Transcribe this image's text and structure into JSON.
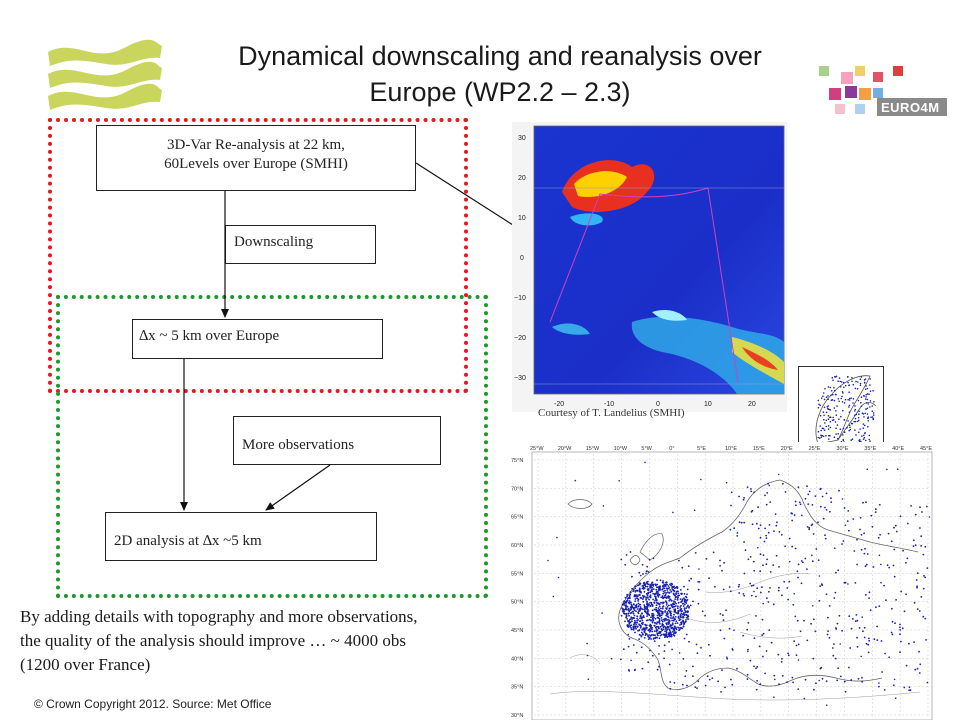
{
  "slide": {
    "title_line1": "Dynamical downscaling and reanalysis over",
    "title_line2": "Europe (WP2.2 – 2.3)",
    "logo_right_text": "EURO4M",
    "footer": "© Crown Copyright 2012. Source: Met Office"
  },
  "flow": {
    "box_reanalysis_line1": "3D-Var Re-analysis at 22 km,",
    "box_reanalysis_line2": "60Levels over Europe (SMHI)",
    "box_downscaling": "Downscaling",
    "box_5km": "∆x ~ 5 km over Europe",
    "box_observations": "More observations",
    "box_2d_analysis": "2D analysis at ∆x ~5 km"
  },
  "map_top": {
    "courtesy": "Courtesy  of  T. Landelius (SMHI)",
    "y_ticks": [
      "30",
      "20",
      "10",
      "0",
      "−10",
      "−20",
      "−30"
    ],
    "x_ticks": [
      "-20",
      "-10",
      "0",
      "10",
      "20"
    ]
  },
  "map_bottom": {
    "top_ticks": [
      "25°W",
      "20°W",
      "15°W",
      "10°W",
      "5°W",
      "0°",
      "5°E",
      "10°E",
      "15°E",
      "20°E",
      "25°E",
      "30°E",
      "35°E",
      "40°E",
      "45°E"
    ],
    "left_ticks": [
      "75°N",
      "70°N",
      "65°N",
      "60°N",
      "55°N",
      "50°N",
      "45°N",
      "40°N",
      "35°N",
      "30°N"
    ]
  },
  "caption": {
    "line1": "By adding details with topography and more observations,",
    "line2": "the quality of the analysis should improve … ~ 4000 obs",
    "line3": "(1200 over France)"
  },
  "colors": {
    "red_dotted": "#e01b1b",
    "green_dotted": "#1a9a2a",
    "map_blue": "#1b2ec8",
    "station_dots": "#1a22b0",
    "logo_green": "#c8d65a"
  },
  "icons": {
    "left_logo": "wave-logo-icon",
    "right_logo": "euro4m-squares-icon"
  }
}
